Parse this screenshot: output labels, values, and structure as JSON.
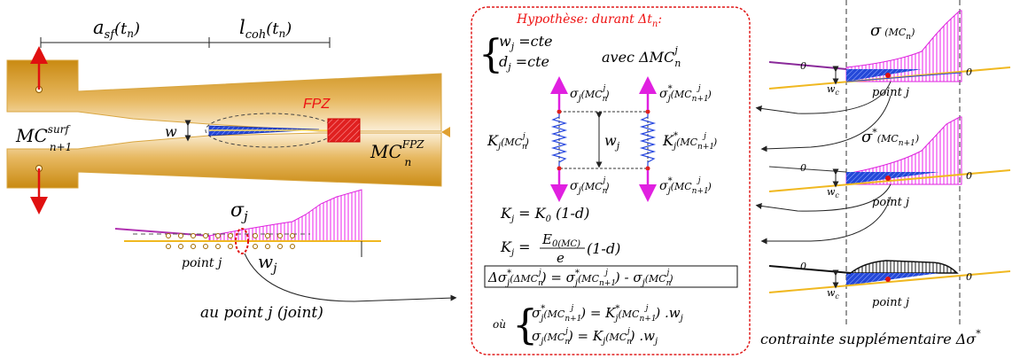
{
  "left_panel": {
    "dim_a": "a",
    "dim_a_sub": "sf",
    "dim_a_arg": "(t",
    "dim_a_arg_sub": "n",
    "dim_a_close": ")",
    "dim_l": "l",
    "dim_l_sub": "coh",
    "dim_l_arg": "(t",
    "dim_l_arg_sub": "n",
    "dim_l_close": ")",
    "fpz_label": "FPZ",
    "w_label": "w",
    "mc_surf": "MC",
    "mc_surf_sup": "surf",
    "mc_surf_sub": "n+1",
    "mc_fpz": "MC",
    "mc_fpz_sup": "FPZ",
    "mc_fpz_sub": "n",
    "sigma_j": "σ",
    "sigma_j_sub": "j",
    "point_j": "point j",
    "w_j": "w",
    "w_j_sub": "j",
    "au_point": "au point j (joint)"
  },
  "center_panel": {
    "hypothesis": "Hypothèse: durant Δt",
    "hypothesis_sub": "n",
    "hypothesis_end": ":",
    "wj_cte": "w",
    "wj_cte_sub": "j",
    "wj_cte_val": " =cte",
    "dj_cte": "d",
    "dj_cte_sub": "j",
    "dj_cte_val": " =cte",
    "avec": "avec ΔMC",
    "avec_sub": "n",
    "avec_sup": "j",
    "sig_tl": "σ",
    "sig_tl_sub": "j",
    "sig_tl_arg": "(MC",
    "sig_tl_arg_sub": "n",
    "sig_tl_arg_sup": "j",
    "sig_tl_close": ")",
    "sig_tr": "σ",
    "sig_tr_sup": "*",
    "sig_tr_sub": "j",
    "sig_tr_arg": "(MC",
    "sig_tr_arg_sub": "n+1",
    "sig_tr_arg_sup": "j",
    "sig_tr_close": ")",
    "k_left": "K",
    "k_left_sub": "j",
    "k_left_arg": "(MC",
    "k_left_arg_sub": "n",
    "k_left_arg_sup": "j",
    "k_left_close": ")",
    "wj_mid": "w",
    "wj_mid_sub": "j",
    "k_right": "K",
    "k_right_sup": "*",
    "k_right_sub": "j",
    "k_right_arg": "(MC",
    "k_right_arg_sub": "n+1",
    "k_right_arg_sup": "j",
    "k_right_close": ")",
    "eq1_lhs": "K",
    "eq1_lhs_sub": "j",
    "eq1_rhs": " = K",
    "eq1_rhs_sub": "0",
    "eq1_rhs_end": " (1-d)",
    "eq2_lhs": "K",
    "eq2_lhs_sub": "j",
    "eq2_eq": " =",
    "eq2_num": "E",
    "eq2_num_sub": "0(MC)",
    "eq2_den": "e",
    "eq2_end": " (1-d)",
    "delta_eq": "Δσ",
    "delta_eq_sup": "*",
    "delta_eq_sub": "j",
    "delta_eq_arg": "(ΔMC",
    "delta_eq_arg_sub": "n",
    "delta_eq_arg_sup": "j",
    "delta_eq_mid": ") = σ",
    "delta_eq_mid_sup": "*",
    "delta_eq_mid_sub": "j",
    "delta_eq_mid_arg": "(MC",
    "delta_eq_mid_arg_sub": "n+1",
    "delta_eq_mid_arg_sup": "j",
    "delta_eq_minus": ")  -  σ",
    "delta_eq_minus_sub": "j",
    "delta_eq_last_arg": "(MC",
    "delta_eq_last_arg_sub": "n",
    "delta_eq_last_arg_sup": "j",
    "delta_eq_last_close": ")",
    "ou": "où",
    "sys1": "σ",
    "sys1_sup": "*",
    "sys1_sub": "j",
    "sys1_arg": "(MC",
    "sys1_arg_sub": "n+1",
    "sys1_arg_sup": "j",
    "sys1_eq": ") = K",
    "sys1_k_sup": "*",
    "sys1_k_sub": "j",
    "sys1_k_arg": "(MC",
    "sys1_k_arg_sub": "n+1",
    "sys1_k_arg_sup": "j",
    "sys1_end": ") .w",
    "sys1_end_sub": "j",
    "sys2": "σ",
    "sys2_sub": "j",
    "sys2_arg": "(MC",
    "sys2_arg_sub": "n",
    "sys2_arg_sup": "j",
    "sys2_eq": ")    = K",
    "sys2_k_sub": "j",
    "sys2_k_arg": "(MC",
    "sys2_k_arg_sub": "n",
    "sys2_k_arg_sup": "j",
    "sys2_end": ")    .w",
    "sys2_end_sub": "j"
  },
  "right_panel": {
    "sigma1": "σ",
    "sigma1_arg": "(MC",
    "sigma1_arg_sub": "n",
    "sigma1_close": ")",
    "sigma2": "σ",
    "sigma2_sup": "*",
    "sigma2_arg": "(MC",
    "sigma2_arg_sub": "n+1",
    "sigma2_close": ")",
    "zero": "0",
    "wc": "w",
    "wc_sub": "c",
    "point_j": "point j",
    "caption": "contrainte supplémentaire Δσ",
    "caption_sup": "*"
  }
}
